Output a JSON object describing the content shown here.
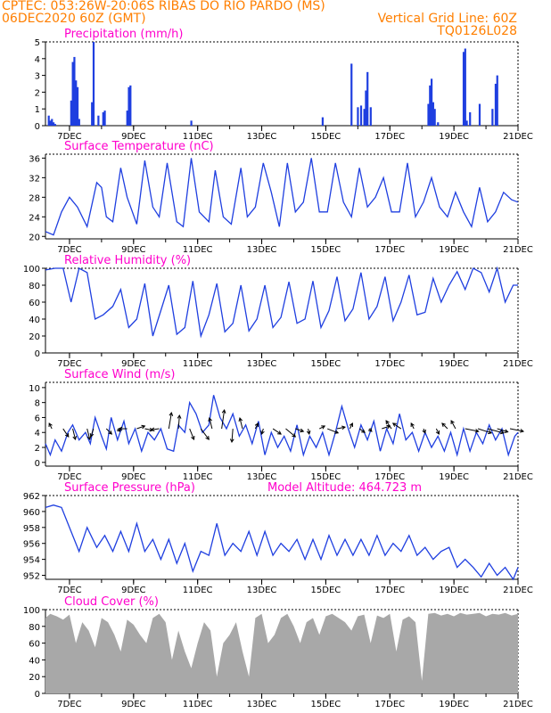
{
  "header": {
    "line1": "CPTEC:   053:26W-20:06S  RIBAS DO RIO PARDO (MS)",
    "line2_left": "06DEC2020 60Z (GMT)",
    "line2_right": "Vertical Grid Line: 60Z",
    "line3_right": "TQ0126L028"
  },
  "colors": {
    "header": "#ff7f00",
    "title": "#ff00cc",
    "line": "#1f3fe0",
    "bar": "#1f3fe0",
    "cloud": "#a8a8a8",
    "arrow": "#000000"
  },
  "x_tick_labels": [
    "7DEC",
    "9DEC",
    "11DEC",
    "13DEC",
    "15DEC",
    "17DEC",
    "19DEC",
    "21DEC"
  ],
  "chart_data": [
    {
      "id": "precip",
      "type": "bar",
      "title": "Precipitation (mm/h)",
      "ylim": [
        0,
        5
      ],
      "yticks": [
        0,
        1,
        2,
        3,
        4,
        5
      ],
      "xlim": [
        6.25,
        21.0
      ],
      "x": [
        6.35,
        6.4,
        6.45,
        6.5,
        6.55,
        7.05,
        7.1,
        7.15,
        7.2,
        7.25,
        7.3,
        7.7,
        7.75,
        7.9,
        8.05,
        8.1,
        8.8,
        8.85,
        8.9,
        10.8,
        14.9,
        15.8,
        16.0,
        16.1,
        16.2,
        16.25,
        16.3,
        16.4,
        18.2,
        18.25,
        18.3,
        18.35,
        18.4,
        18.5,
        19.3,
        19.35,
        19.4,
        19.5,
        19.8,
        20.2,
        20.3,
        20.35
      ],
      "values": [
        0.6,
        0.3,
        0.4,
        0.2,
        0.1,
        1.5,
        3.8,
        4.1,
        2.7,
        2.3,
        0.4,
        1.4,
        5.0,
        0.6,
        0.8,
        0.9,
        0.9,
        2.3,
        2.4,
        0.3,
        0.5,
        3.7,
        1.1,
        1.2,
        1.0,
        2.1,
        3.2,
        1.1,
        1.3,
        2.4,
        2.8,
        1.4,
        1.0,
        0.2,
        4.4,
        4.6,
        0.3,
        0.8,
        1.3,
        1.0,
        2.5,
        3.0
      ]
    },
    {
      "id": "temp",
      "type": "line",
      "title": "Surface Temperature (nC)",
      "ylim": [
        19.5,
        36.8
      ],
      "yticks": [
        20,
        24,
        28,
        32,
        36
      ],
      "xlim": [
        6.25,
        21.0
      ],
      "x": [
        6.25,
        6.5,
        6.75,
        7.0,
        7.25,
        7.55,
        7.85,
        8.0,
        8.15,
        8.35,
        8.6,
        8.8,
        9.1,
        9.35,
        9.6,
        9.8,
        10.05,
        10.35,
        10.55,
        10.8,
        11.05,
        11.35,
        11.55,
        11.8,
        12.05,
        12.35,
        12.55,
        12.8,
        13.05,
        13.3,
        13.55,
        13.8,
        14.05,
        14.3,
        14.55,
        14.8,
        15.05,
        15.3,
        15.55,
        15.8,
        16.05,
        16.3,
        16.55,
        16.8,
        17.05,
        17.3,
        17.55,
        17.8,
        18.05,
        18.3,
        18.55,
        18.8,
        19.05,
        19.3,
        19.55,
        19.8,
        20.05,
        20.3,
        20.55,
        20.8,
        21.0
      ],
      "values": [
        21,
        20.3,
        25,
        28,
        26,
        22,
        31,
        30,
        24,
        23,
        34,
        28,
        22.5,
        35.5,
        26,
        24,
        35,
        23,
        22,
        36,
        25,
        23,
        33.5,
        24,
        22.5,
        34,
        24,
        26,
        35,
        29,
        22,
        35,
        25,
        27,
        36,
        25,
        25,
        35,
        27,
        24,
        34,
        26,
        28,
        32,
        25,
        25,
        35,
        24,
        27,
        32,
        26,
        24,
        29,
        25,
        22,
        30,
        23,
        25,
        29,
        27.5,
        27
      ]
    },
    {
      "id": "rh",
      "type": "line",
      "title": "Relative Humidity (%)",
      "ylim": [
        0,
        100
      ],
      "yticks": [
        0,
        20,
        40,
        60,
        80,
        100
      ],
      "xlim": [
        6.25,
        21.0
      ],
      "x": [
        6.25,
        6.55,
        6.8,
        7.05,
        7.3,
        7.55,
        7.8,
        8.05,
        8.35,
        8.6,
        8.85,
        9.1,
        9.35,
        9.6,
        9.85,
        10.1,
        10.35,
        10.6,
        10.85,
        11.1,
        11.35,
        11.6,
        11.85,
        12.1,
        12.35,
        12.6,
        12.85,
        13.1,
        13.35,
        13.6,
        13.85,
        14.1,
        14.35,
        14.6,
        14.85,
        15.1,
        15.35,
        15.6,
        15.85,
        16.1,
        16.35,
        16.6,
        16.85,
        17.1,
        17.35,
        17.6,
        17.85,
        18.1,
        18.35,
        18.6,
        18.85,
        19.1,
        19.35,
        19.6,
        19.85,
        20.1,
        20.35,
        20.6,
        20.85,
        21.0
      ],
      "values": [
        98,
        100,
        100,
        60,
        100,
        95,
        40,
        45,
        55,
        75,
        30,
        40,
        82,
        20,
        50,
        80,
        22,
        30,
        85,
        20,
        45,
        82,
        25,
        35,
        80,
        26,
        40,
        80,
        30,
        42,
        84,
        35,
        40,
        85,
        30,
        50,
        90,
        38,
        52,
        95,
        40,
        55,
        90,
        38,
        60,
        92,
        45,
        48,
        88,
        60,
        80,
        96,
        75,
        100,
        95,
        72,
        100,
        60,
        80,
        80
      ]
    },
    {
      "id": "wind",
      "type": "line",
      "title": "Surface Wind (m/s)",
      "ylim": [
        -0.5,
        10.7
      ],
      "yticks": [
        0,
        2,
        4,
        6,
        8,
        10
      ],
      "xlim": [
        6.25,
        21.0
      ],
      "x": [
        6.25,
        6.4,
        6.55,
        6.75,
        6.95,
        7.1,
        7.3,
        7.5,
        7.65,
        7.8,
        8.0,
        8.15,
        8.3,
        8.5,
        8.7,
        8.85,
        9.05,
        9.25,
        9.45,
        9.65,
        9.85,
        10.05,
        10.25,
        10.4,
        10.6,
        10.75,
        10.95,
        11.15,
        11.35,
        11.5,
        11.7,
        11.9,
        12.1,
        12.3,
        12.5,
        12.7,
        12.9,
        13.1,
        13.3,
        13.5,
        13.7,
        13.9,
        14.1,
        14.3,
        14.5,
        14.7,
        14.9,
        15.1,
        15.3,
        15.5,
        15.7,
        15.9,
        16.1,
        16.3,
        16.5,
        16.7,
        16.9,
        17.1,
        17.3,
        17.5,
        17.7,
        17.9,
        18.1,
        18.3,
        18.5,
        18.7,
        18.9,
        19.1,
        19.3,
        19.5,
        19.7,
        19.9,
        20.1,
        20.3,
        20.5,
        20.7,
        20.9,
        21.0
      ],
      "values": [
        2.5,
        1,
        3,
        1.5,
        4,
        5,
        3,
        4,
        2.5,
        6,
        3.5,
        1.8,
        6,
        3,
        5.5,
        2.5,
        4.5,
        1.5,
        4,
        3,
        4.5,
        1.8,
        1.5,
        5,
        4,
        8,
        6.5,
        4,
        5,
        9,
        6,
        4.5,
        6.5,
        3.5,
        5,
        2.5,
        5.5,
        1,
        4,
        2,
        3.5,
        1.5,
        5,
        1,
        3.5,
        2,
        4,
        1,
        4,
        7.5,
        4.5,
        2,
        5,
        3,
        5.5,
        1.5,
        4.5,
        2.5,
        6.5,
        3,
        4,
        1.5,
        4,
        2,
        3.5,
        1.5,
        4,
        1,
        4.5,
        1.5,
        4,
        2.5,
        5,
        3,
        4.5,
        1,
        3.5,
        4
      ]
    },
    {
      "id": "pressure",
      "type": "line",
      "title": "Surface Pressure (hPa)",
      "annotation": "Model Altitude: 464.723 m",
      "ylim": [
        951.5,
        962
      ],
      "yticks": [
        952,
        954,
        956,
        958,
        960,
        962
      ],
      "xlim": [
        6.25,
        21.0
      ],
      "x": [
        6.25,
        6.5,
        6.75,
        7.0,
        7.3,
        7.55,
        7.85,
        8.1,
        8.35,
        8.6,
        8.85,
        9.1,
        9.35,
        9.6,
        9.85,
        10.1,
        10.35,
        10.6,
        10.85,
        11.1,
        11.35,
        11.6,
        11.85,
        12.1,
        12.35,
        12.6,
        12.85,
        13.1,
        13.35,
        13.6,
        13.85,
        14.1,
        14.35,
        14.6,
        14.85,
        15.1,
        15.35,
        15.6,
        15.85,
        16.1,
        16.35,
        16.6,
        16.85,
        17.1,
        17.35,
        17.6,
        17.85,
        18.1,
        18.35,
        18.6,
        18.85,
        19.1,
        19.35,
        19.6,
        19.85,
        20.1,
        20.35,
        20.6,
        20.85,
        21.0
      ],
      "values": [
        960.5,
        960.8,
        960.5,
        958,
        955,
        958,
        955.5,
        957,
        955,
        957.5,
        955,
        958.5,
        955,
        956.5,
        954,
        956.5,
        953.5,
        956,
        952.5,
        955,
        954.5,
        958.5,
        954.5,
        956,
        955,
        957.5,
        954.5,
        957.5,
        954.5,
        956,
        955,
        956.5,
        954,
        956.5,
        954,
        957,
        954.5,
        956.5,
        954.5,
        956.5,
        954.5,
        957,
        954.5,
        956,
        955,
        957,
        954.5,
        955.5,
        954,
        955,
        955.5,
        953,
        954,
        953,
        951.8,
        953.5,
        952,
        953,
        951.5,
        953
      ]
    },
    {
      "id": "cloud",
      "type": "area",
      "title": "Cloud Cover (%)",
      "ylim": [
        0,
        100
      ],
      "yticks": [
        0,
        20,
        40,
        60,
        80,
        100
      ],
      "xlim": [
        6.25,
        21.0
      ],
      "x": [
        6.25,
        6.4,
        6.6,
        6.8,
        7.0,
        7.2,
        7.4,
        7.6,
        7.8,
        8.0,
        8.2,
        8.4,
        8.6,
        8.8,
        9.0,
        9.2,
        9.4,
        9.6,
        9.8,
        10.0,
        10.2,
        10.4,
        10.6,
        10.8,
        11.0,
        11.2,
        11.4,
        11.6,
        11.8,
        12.0,
        12.2,
        12.4,
        12.6,
        12.8,
        13.0,
        13.2,
        13.4,
        13.6,
        13.8,
        14.0,
        14.2,
        14.4,
        14.6,
        14.8,
        15.0,
        15.2,
        15.4,
        15.6,
        15.8,
        16.0,
        16.2,
        16.4,
        16.6,
        16.8,
        17.0,
        17.2,
        17.4,
        17.6,
        17.8,
        18.0,
        18.2,
        18.4,
        18.6,
        18.8,
        19.0,
        19.2,
        19.4,
        19.6,
        19.8,
        20.0,
        20.2,
        20.4,
        20.6,
        20.8,
        21.0
      ],
      "values": [
        90,
        95,
        92,
        88,
        94,
        60,
        85,
        75,
        55,
        90,
        85,
        70,
        50,
        88,
        82,
        70,
        60,
        90,
        95,
        85,
        40,
        75,
        50,
        30,
        60,
        85,
        75,
        20,
        60,
        70,
        85,
        50,
        20,
        90,
        95,
        60,
        70,
        90,
        95,
        80,
        60,
        85,
        90,
        70,
        92,
        95,
        90,
        85,
        75,
        92,
        94,
        60,
        93,
        90,
        95,
        50,
        88,
        92,
        85,
        15,
        95,
        96,
        93,
        95,
        92,
        96,
        94,
        95,
        96,
        92,
        95,
        94,
        96,
        93,
        95
      ]
    },
    {
      "id": "wind-arrows",
      "type": "scatter",
      "note": "wind direction arrows (vector components u, v)",
      "x": [
        6.45,
        6.8,
        7.1,
        7.55,
        7.75,
        8.15,
        8.5,
        8.8,
        9.1,
        9.35,
        9.8,
        10.1,
        10.4,
        10.75,
        11.1,
        11.45,
        11.75,
        12.1,
        12.4,
        12.8,
        13.05,
        13.35,
        13.75,
        14.05,
        14.45,
        14.8,
        15.05,
        15.35,
        15.75,
        16.05,
        16.35,
        16.75,
        17.05,
        17.35,
        17.75,
        18.05,
        18.45,
        18.8,
        19.05,
        19.35,
        19.75,
        20.05,
        20.35,
        20.75
      ],
      "y": [
        4.5,
        4.5,
        4.5,
        4.5,
        4.5,
        4.5,
        4.5,
        4.5,
        4.5,
        4.5,
        4.5,
        4.5,
        4.5,
        4.5,
        4.5,
        4.5,
        4.5,
        4.5,
        4.5,
        4.5,
        4.5,
        4.5,
        4.5,
        4.5,
        4.5,
        4.5,
        4.5,
        4.5,
        4.5,
        4.5,
        4.5,
        4.5,
        4.5,
        4.5,
        4.5,
        4.5,
        4.5,
        4.5,
        4.5,
        4.5,
        4.5,
        4.5,
        4.5,
        4.5
      ],
      "u": [
        -0.5,
        1.0,
        0.5,
        0.5,
        -0.5,
        1.0,
        0.5,
        -1.5,
        1.5,
        1.5,
        -1.5,
        0.5,
        0.2,
        0.8,
        1.5,
        -0.5,
        0.5,
        -0.2,
        -0.5,
        0.5,
        -0.3,
        1.5,
        1.8,
        1.5,
        0.2,
        1.0,
        2.0,
        1.5,
        0.5,
        1.0,
        0.5,
        1.5,
        -1.0,
        -1.5,
        -0.5,
        0.3,
        0.5,
        -1.0,
        -0.8,
        2.5,
        2.5,
        3.0,
        2.0,
        2.5
      ],
      "v": [
        1.0,
        -1.5,
        -2.0,
        -2.0,
        -1.5,
        -1.0,
        -0.5,
        0.0,
        0.5,
        -0.3,
        -0.2,
        3.0,
        2.5,
        -2.0,
        -2.0,
        2.0,
        3.5,
        -2.5,
        2.0,
        1.0,
        -1.0,
        -1.0,
        -1.5,
        -0.5,
        -1.0,
        0.5,
        -0.8,
        0.3,
        1.0,
        -0.7,
        -0.5,
        0.5,
        1.5,
        1.0,
        1.0,
        -0.8,
        -1.0,
        1.0,
        1.5,
        -0.5,
        -0.8,
        -0.8,
        -0.6,
        -0.5
      ]
    }
  ]
}
